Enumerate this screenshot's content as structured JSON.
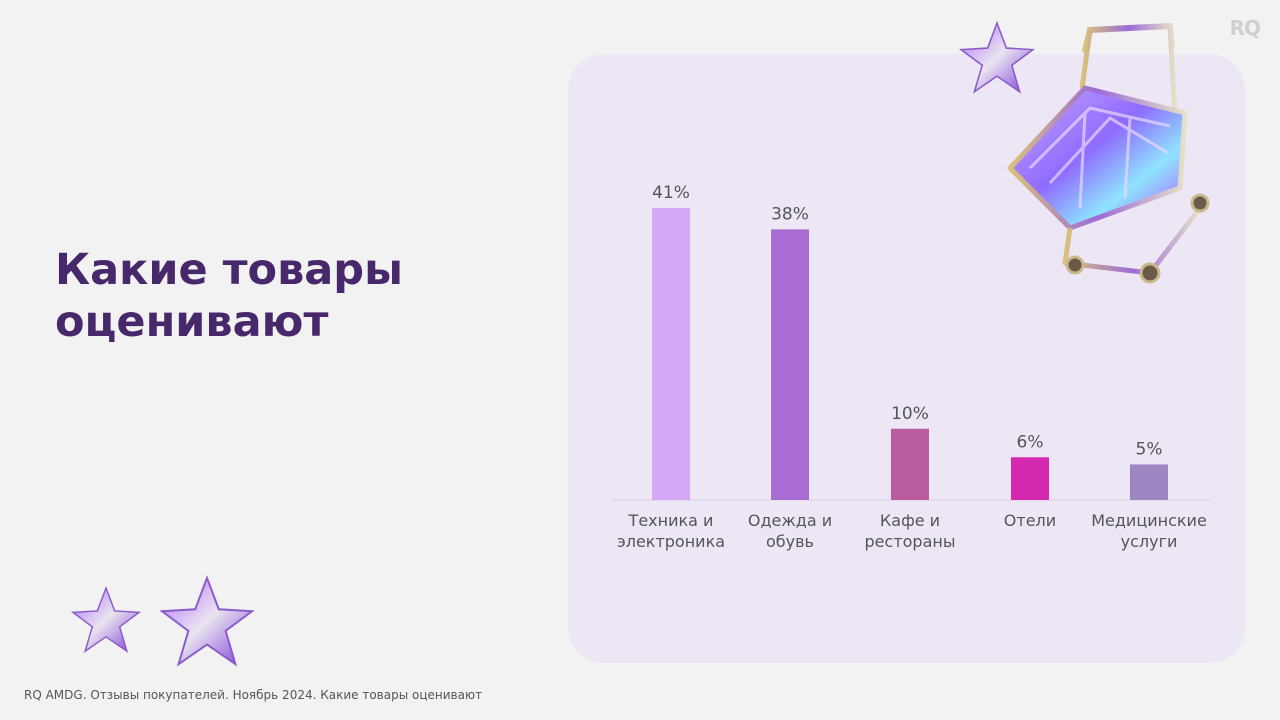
{
  "brand": {
    "logo": "RQ"
  },
  "slide": {
    "title_line1": "Какие товары",
    "title_line2": "оценивают",
    "footer": "RQ AMDG. Отзывы покупателей. Ноябрь 2024. Какие товары оценивают"
  },
  "decor": {
    "cart": "shopping-cart-illustration",
    "stars": "star-illustration"
  },
  "chart_data": {
    "type": "bar",
    "categories": [
      [
        "Техника и",
        "электроника"
      ],
      [
        "Одежда и",
        "обувь"
      ],
      [
        "Кафе и",
        "рестораны"
      ],
      [
        "Отели"
      ],
      [
        "Медицинские",
        "услуги"
      ]
    ],
    "values": [
      41,
      38,
      10,
      6,
      5
    ],
    "value_labels": [
      "41%",
      "38%",
      "10%",
      "6%",
      "5%"
    ],
    "unit": "%",
    "colors": [
      "#d4a8f5",
      "#a96cd2",
      "#b95d9f",
      "#d428ae",
      "#9d87c3"
    ],
    "ylim": [
      0,
      45
    ],
    "grid": false,
    "legend": "none"
  }
}
